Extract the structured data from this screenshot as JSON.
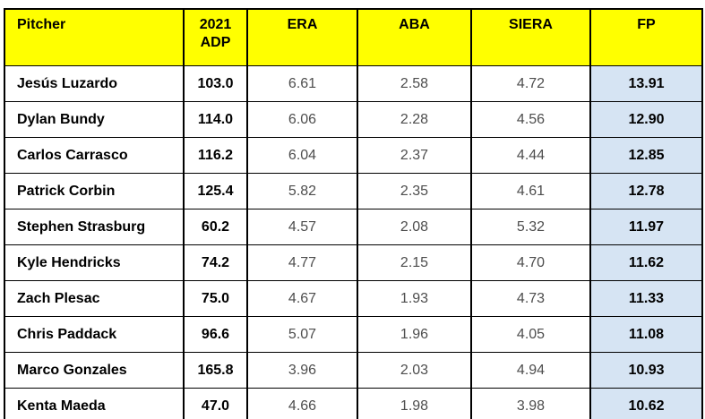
{
  "colors": {
    "header_bg": "#ffff00",
    "fp_cell_bg": "#d6e4f3",
    "border": "#000000",
    "text": "#000000",
    "stat_text": "#4d4d4d"
  },
  "chart_data": {
    "type": "table",
    "columns": [
      "Pitcher",
      "2021 ADP",
      "ERA",
      "ABA",
      "SIERA",
      "FP"
    ],
    "rows": [
      {
        "pitcher": "Jesús Luzardo",
        "adp": "103.0",
        "era": "6.61",
        "aba": "2.58",
        "siera": "4.72",
        "fp": "13.91"
      },
      {
        "pitcher": "Dylan Bundy",
        "adp": "114.0",
        "era": "6.06",
        "aba": "2.28",
        "siera": "4.56",
        "fp": "12.90"
      },
      {
        "pitcher": "Carlos Carrasco",
        "adp": "116.2",
        "era": "6.04",
        "aba": "2.37",
        "siera": "4.44",
        "fp": "12.85"
      },
      {
        "pitcher": "Patrick Corbin",
        "adp": "125.4",
        "era": "5.82",
        "aba": "2.35",
        "siera": "4.61",
        "fp": "12.78"
      },
      {
        "pitcher": "Stephen Strasburg",
        "adp": "60.2",
        "era": "4.57",
        "aba": "2.08",
        "siera": "5.32",
        "fp": "11.97"
      },
      {
        "pitcher": "Kyle Hendricks",
        "adp": "74.2",
        "era": "4.77",
        "aba": "2.15",
        "siera": "4.70",
        "fp": "11.62"
      },
      {
        "pitcher": "Zach Plesac",
        "adp": "75.0",
        "era": "4.67",
        "aba": "1.93",
        "siera": "4.73",
        "fp": "11.33"
      },
      {
        "pitcher": "Chris Paddack",
        "adp": "96.6",
        "era": "5.07",
        "aba": "1.96",
        "siera": "4.05",
        "fp": "11.08"
      },
      {
        "pitcher": "Marco Gonzales",
        "adp": "165.8",
        "era": "3.96",
        "aba": "2.03",
        "siera": "4.94",
        "fp": "10.93"
      },
      {
        "pitcher": "Kenta Maeda",
        "adp": "47.0",
        "era": "4.66",
        "aba": "1.98",
        "siera": "3.98",
        "fp": "10.62"
      }
    ]
  }
}
